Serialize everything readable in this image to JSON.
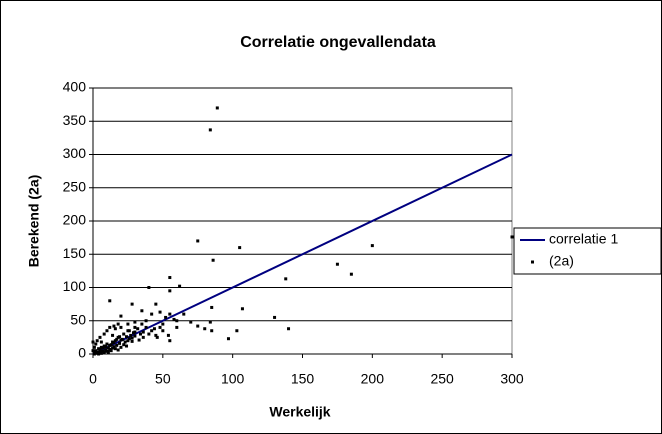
{
  "chart_data": {
    "type": "scatter",
    "title": "Correlatie ongevallendata",
    "x_label": "Werkelijk",
    "y_label": "Berekend (2a)",
    "xlim": [
      0,
      300
    ],
    "xticks": [
      0,
      50,
      100,
      150,
      200,
      250,
      300
    ],
    "ylim": [
      0,
      400
    ],
    "yticks": [
      0,
      50,
      100,
      150,
      200,
      250,
      300,
      350,
      400
    ],
    "grid": true,
    "legend": "right",
    "series": [
      {
        "name": "correlatie 1",
        "color": "#000080",
        "type": "line",
        "x": [
          0,
          300
        ],
        "values": [
          0,
          300
        ]
      },
      {
        "name": "(2a)",
        "color": "#000000",
        "type": "scatter",
        "x": [
          84,
          89,
          75,
          86,
          105,
          55,
          62,
          55,
          200,
          175,
          185,
          300,
          138,
          130,
          140,
          97,
          107,
          103,
          85,
          84,
          75,
          80,
          85,
          40,
          45,
          35,
          55,
          60,
          60,
          55,
          54,
          45,
          50,
          28,
          12,
          20,
          42,
          48,
          25,
          30,
          1,
          2,
          3,
          4,
          5,
          6,
          7,
          8,
          9,
          10,
          11,
          12,
          13,
          14,
          15,
          16,
          17,
          18,
          19,
          20,
          21,
          22,
          23,
          24,
          25,
          26,
          27,
          28,
          29,
          30,
          32,
          34,
          35,
          36,
          38,
          2,
          3,
          5,
          6,
          8,
          10,
          12,
          14,
          15,
          16,
          18,
          20,
          1,
          0,
          0,
          1,
          2,
          3,
          4,
          5,
          6,
          7,
          8,
          9,
          10,
          11,
          12,
          13,
          14,
          15,
          16,
          17,
          18,
          19,
          20,
          22,
          24,
          26,
          28,
          30,
          33,
          36,
          40,
          42,
          44,
          46,
          48,
          50,
          52,
          58,
          65,
          70,
          38,
          30,
          25
        ],
        "values": [
          337,
          370,
          170,
          141,
          160,
          115,
          102,
          95,
          163,
          135,
          120,
          176,
          113,
          55,
          38,
          23,
          68,
          35,
          70,
          48,
          42,
          38,
          35,
          100,
          75,
          65,
          60,
          50,
          40,
          20,
          28,
          28,
          45,
          75,
          80,
          57,
          60,
          63,
          45,
          40,
          2,
          5,
          1,
          8,
          3,
          10,
          4,
          12,
          6,
          15,
          9,
          7,
          14,
          18,
          11,
          20,
          13,
          25,
          16,
          10,
          22,
          30,
          18,
          26,
          20,
          35,
          28,
          24,
          32,
          27,
          38,
          30,
          45,
          33,
          40,
          15,
          20,
          25,
          18,
          30,
          35,
          40,
          28,
          42,
          38,
          45,
          40,
          10,
          18,
          5,
          0,
          2,
          3,
          0,
          6,
          1,
          9,
          2,
          11,
          4,
          3,
          13,
          5,
          9,
          17,
          8,
          22,
          6,
          26,
          21,
          14,
          12,
          23,
          19,
          33,
          21,
          25,
          30,
          35,
          38,
          25,
          40,
          35,
          55,
          52,
          60,
          48,
          50,
          48,
          35
        ]
      }
    ]
  }
}
